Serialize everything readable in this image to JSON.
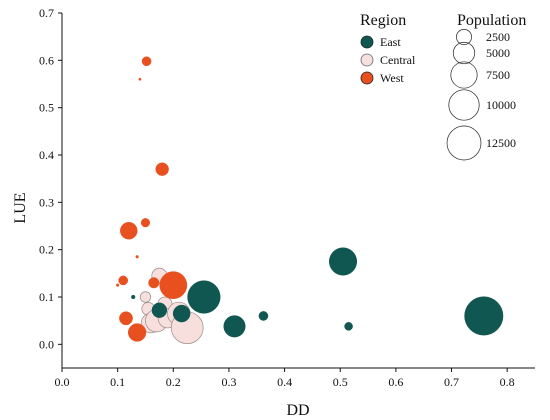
{
  "chart_data": {
    "type": "scatter",
    "title": "",
    "xlabel": "DD",
    "ylabel": "LUE",
    "xlim": [
      0.0,
      0.85
    ],
    "ylim": [
      -0.05,
      0.7
    ],
    "x_ticks": [
      0.0,
      0.1,
      0.2,
      0.3,
      0.4,
      0.5,
      0.6,
      0.7,
      0.8
    ],
    "x_tick_labels": [
      "0.0",
      "0.1",
      "0.2",
      "0.3",
      "0.4",
      "0.5",
      "0.6",
      "0.7",
      "0.8"
    ],
    "y_ticks": [
      0.0,
      0.1,
      0.2,
      0.3,
      0.4,
      0.5,
      0.6,
      0.7
    ],
    "y_tick_labels": [
      "0.0",
      "0.1",
      "0.2",
      "0.3",
      "0.4",
      "0.5",
      "0.6",
      "0.7"
    ],
    "grid": false,
    "legend": {
      "region_title": "Region",
      "population_title": "Population",
      "placement": "top-right",
      "regions": [
        {
          "name": "East",
          "color": "#0f5750"
        },
        {
          "name": "Central",
          "color": "#f6dfdc"
        },
        {
          "name": "West",
          "color": "#e8501f"
        }
      ],
      "population_sizes": [
        {
          "label": "2500",
          "value": 2500
        },
        {
          "label": "5000",
          "value": 5000
        },
        {
          "label": "7500",
          "value": 7500
        },
        {
          "label": "10000",
          "value": 10000
        },
        {
          "label": "12500",
          "value": 12500
        }
      ]
    },
    "series": [
      {
        "name": "Central",
        "color": "#f6dfdc",
        "points": [
          {
            "x": 0.15,
            "y": 0.1,
            "population": 1200
          },
          {
            "x": 0.155,
            "y": 0.075,
            "population": 1800
          },
          {
            "x": 0.16,
            "y": 0.045,
            "population": 4200
          },
          {
            "x": 0.17,
            "y": 0.05,
            "population": 5400
          },
          {
            "x": 0.175,
            "y": 0.145,
            "population": 2500
          },
          {
            "x": 0.185,
            "y": 0.085,
            "population": 2200
          },
          {
            "x": 0.19,
            "y": 0.055,
            "population": 4000
          },
          {
            "x": 0.21,
            "y": 0.065,
            "population": 5600
          },
          {
            "x": 0.225,
            "y": 0.035,
            "population": 11000
          }
        ]
      },
      {
        "name": "West",
        "color": "#e8501f",
        "points": [
          {
            "x": 0.1,
            "y": 0.125,
            "population": 80
          },
          {
            "x": 0.11,
            "y": 0.135,
            "population": 900
          },
          {
            "x": 0.115,
            "y": 0.055,
            "population": 1900
          },
          {
            "x": 0.12,
            "y": 0.24,
            "population": 3100
          },
          {
            "x": 0.135,
            "y": 0.185,
            "population": 80
          },
          {
            "x": 0.135,
            "y": 0.025,
            "population": 3400
          },
          {
            "x": 0.14,
            "y": 0.56,
            "population": 60
          },
          {
            "x": 0.15,
            "y": 0.257,
            "population": 800
          },
          {
            "x": 0.152,
            "y": 0.598,
            "population": 900
          },
          {
            "x": 0.165,
            "y": 0.13,
            "population": 1200
          },
          {
            "x": 0.18,
            "y": 0.37,
            "population": 1800
          },
          {
            "x": 0.2,
            "y": 0.125,
            "population": 8000
          }
        ]
      },
      {
        "name": "East",
        "color": "#0f5750",
        "points": [
          {
            "x": 0.128,
            "y": 0.1,
            "population": 150
          },
          {
            "x": 0.175,
            "y": 0.072,
            "population": 2400
          },
          {
            "x": 0.215,
            "y": 0.065,
            "population": 3100
          },
          {
            "x": 0.255,
            "y": 0.1,
            "population": 11500
          },
          {
            "x": 0.31,
            "y": 0.038,
            "population": 5000
          },
          {
            "x": 0.362,
            "y": 0.06,
            "population": 900
          },
          {
            "x": 0.505,
            "y": 0.175,
            "population": 8200
          },
          {
            "x": 0.515,
            "y": 0.038,
            "population": 700
          },
          {
            "x": 0.758,
            "y": 0.06,
            "population": 16000
          }
        ]
      }
    ]
  }
}
